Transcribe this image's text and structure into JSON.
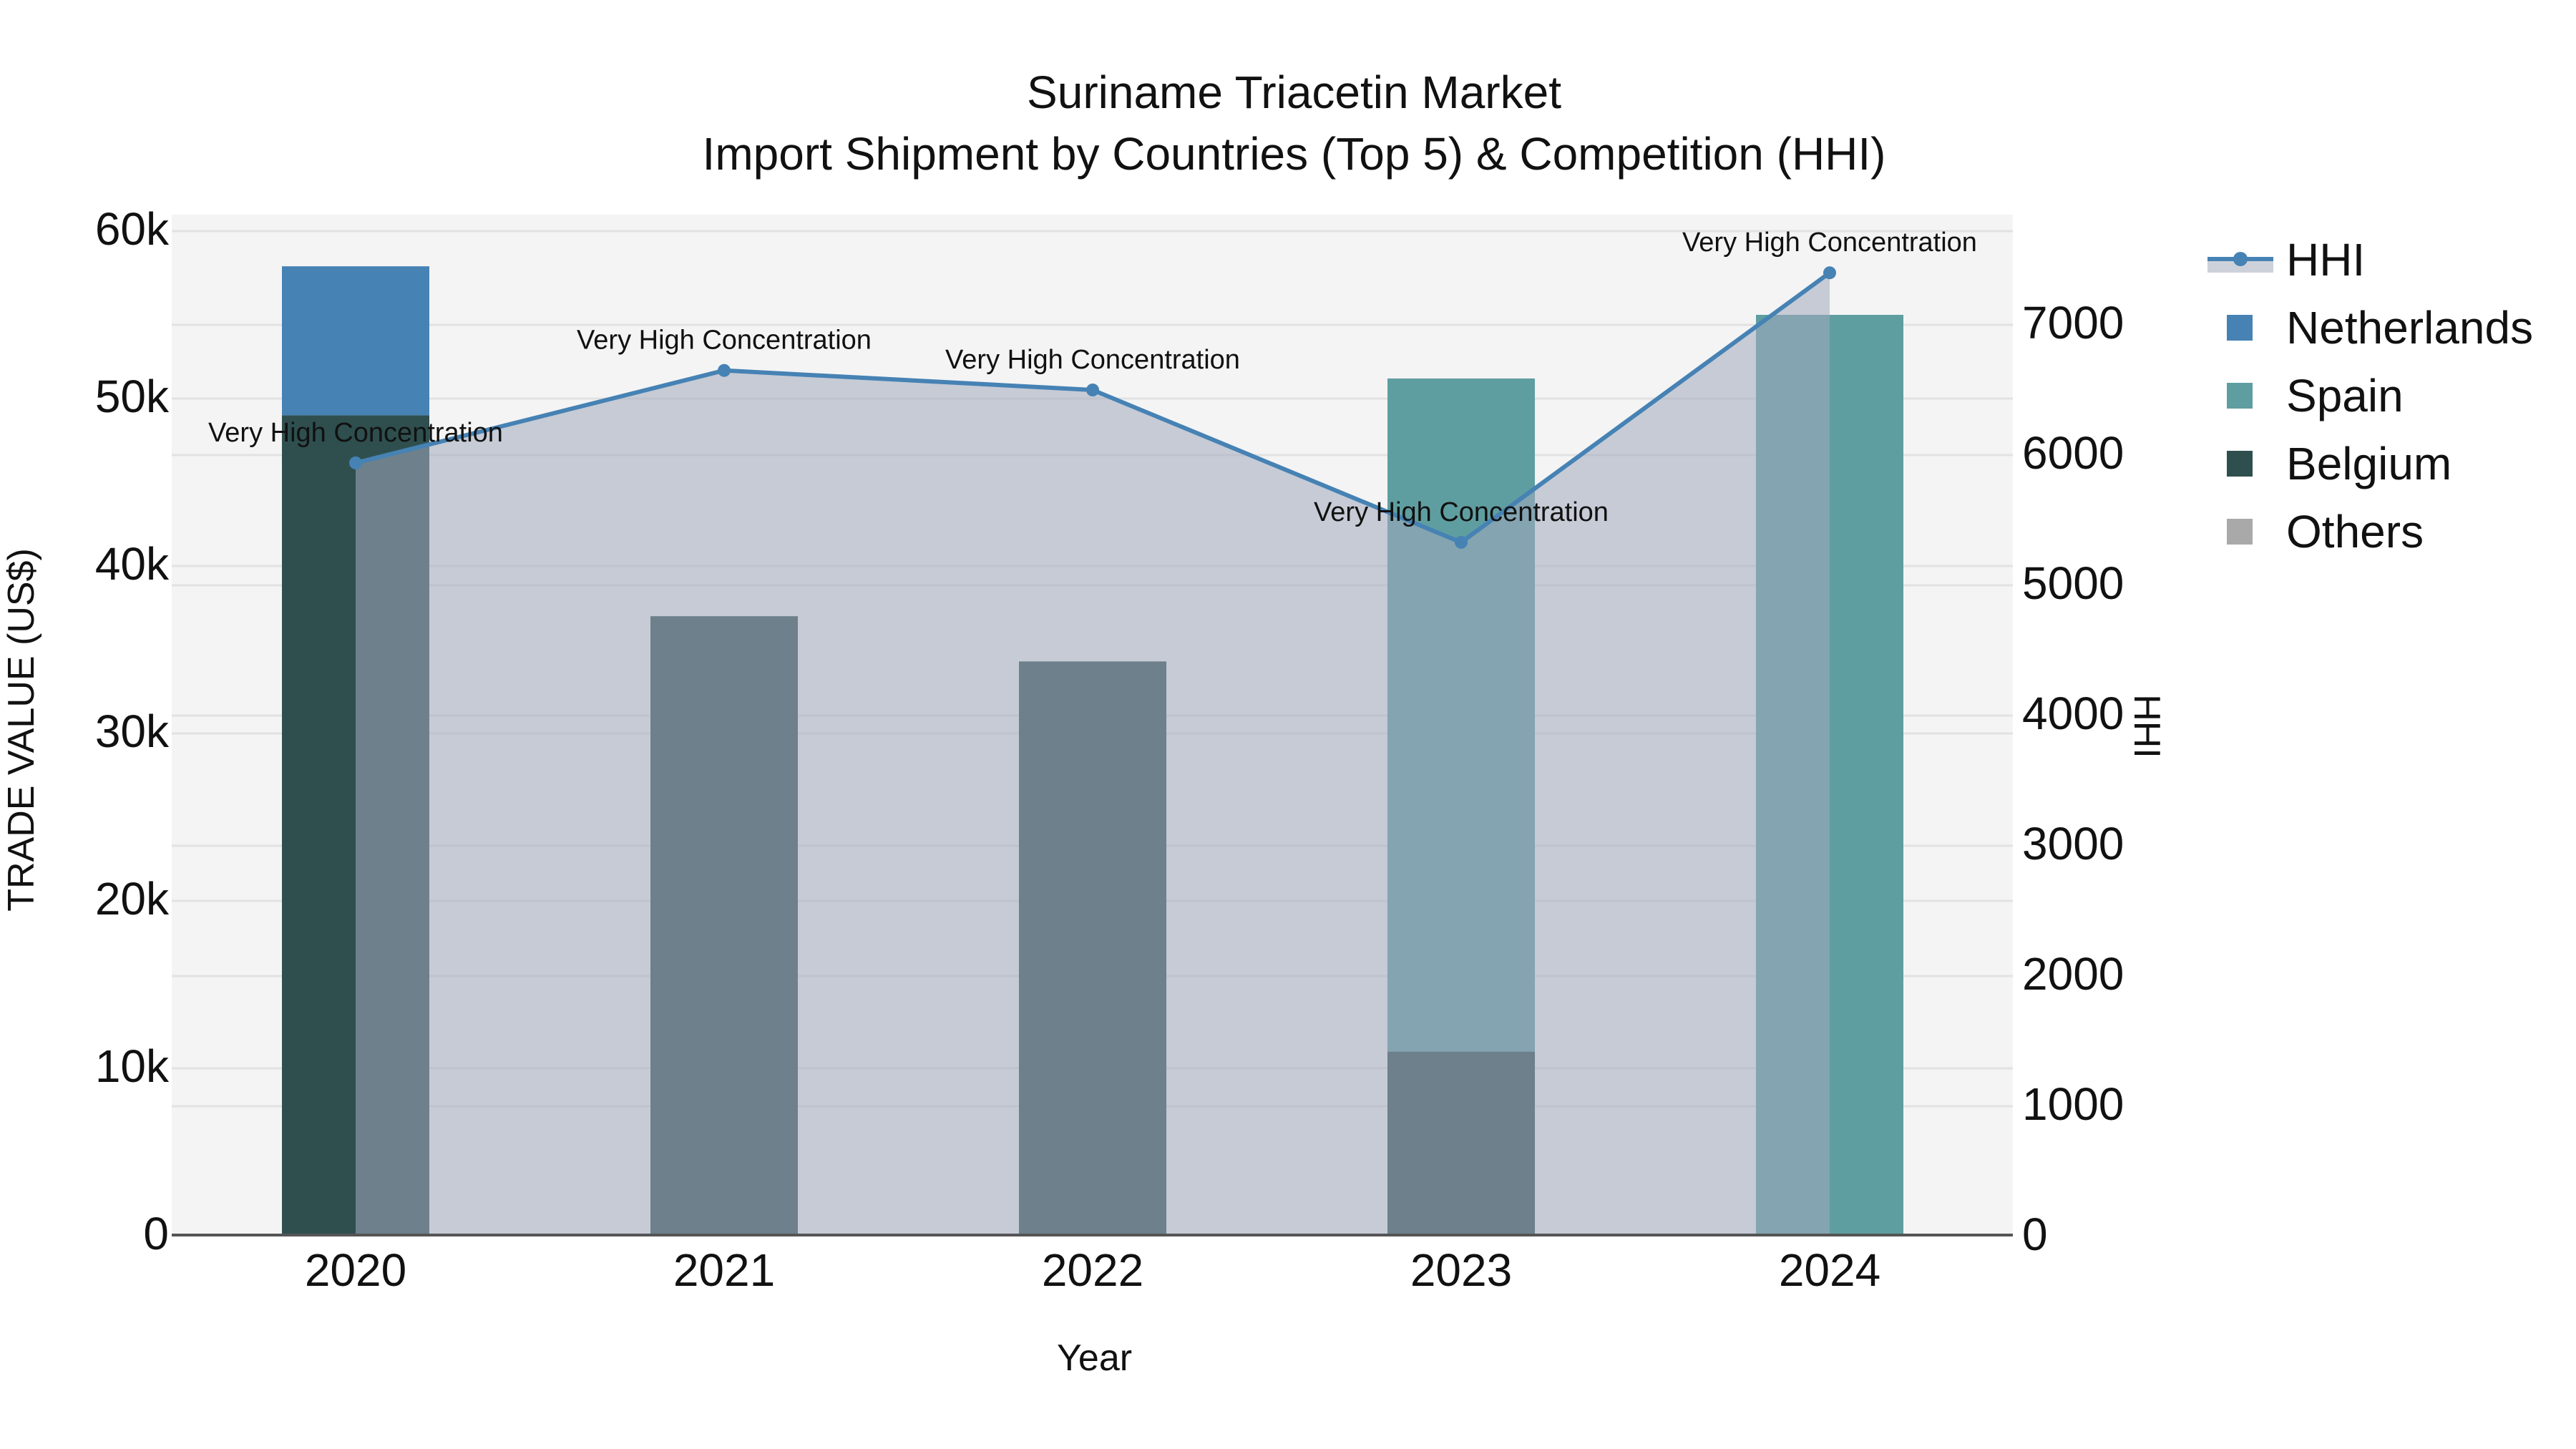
{
  "title": {
    "line1": "Suriname Triacetin Market",
    "line2": "Import Shipment by Countries (Top 5) & Competition (HHI)"
  },
  "axes": {
    "x_title": "Year",
    "y_left_title": "TRADE VALUE (US$)",
    "y_right_title": "HHI",
    "y_left_ticks": [
      "0",
      "10k",
      "20k",
      "30k",
      "40k",
      "50k",
      "60k"
    ],
    "y_right_ticks": [
      "0",
      "1000",
      "2000",
      "3000",
      "4000",
      "5000",
      "6000",
      "7000"
    ]
  },
  "legend": [
    {
      "label": "HHI",
      "type": "line",
      "color": "#4682B4"
    },
    {
      "label": "Netherlands",
      "type": "bar",
      "color": "#4682B4"
    },
    {
      "label": "Spain",
      "type": "bar",
      "color": "#5F9EA0"
    },
    {
      "label": "Belgium",
      "type": "bar",
      "color": "#2F4F4F"
    },
    {
      "label": "Others",
      "type": "bar",
      "color": "#A9A9A9"
    }
  ],
  "chart_data": {
    "type": "bar",
    "title": "Suriname Triacetin Market — Import Shipment by Countries (Top 5) & Competition (HHI)",
    "xlabel": "Year",
    "ylabel": "TRADE VALUE (US$)",
    "y2label": "HHI",
    "stacked": true,
    "categories": [
      "2020",
      "2021",
      "2022",
      "2023",
      "2024"
    ],
    "ylim": [
      0,
      61000
    ],
    "y2lim": [
      0,
      7830
    ],
    "grid": true,
    "legend_position": "right",
    "series": [
      {
        "name": "Belgium",
        "type": "bar",
        "color": "#2F4F4F",
        "values": [
          49000,
          37000,
          34300,
          11000,
          0
        ]
      },
      {
        "name": "Spain",
        "type": "bar",
        "color": "#5F9EA0",
        "values": [
          0,
          0,
          0,
          40200,
          55000
        ]
      },
      {
        "name": "Netherlands",
        "type": "bar",
        "color": "#4682B4",
        "values": [
          8900,
          0,
          0,
          0,
          0
        ]
      },
      {
        "name": "Others",
        "type": "bar",
        "color": "#A9A9A9",
        "values": [
          0,
          0,
          0,
          0,
          0
        ]
      },
      {
        "name": "HHI",
        "type": "line+area",
        "axis": "y2",
        "color": "#4682B4",
        "fill": "rgba(160,170,190,0.55)",
        "values": [
          5940,
          6650,
          6500,
          5330,
          7400
        ],
        "labels": [
          "Very High Concentration",
          "Very High Concentration",
          "Very High Concentration",
          "Very High Concentration",
          "Very High Concentration"
        ]
      }
    ]
  }
}
